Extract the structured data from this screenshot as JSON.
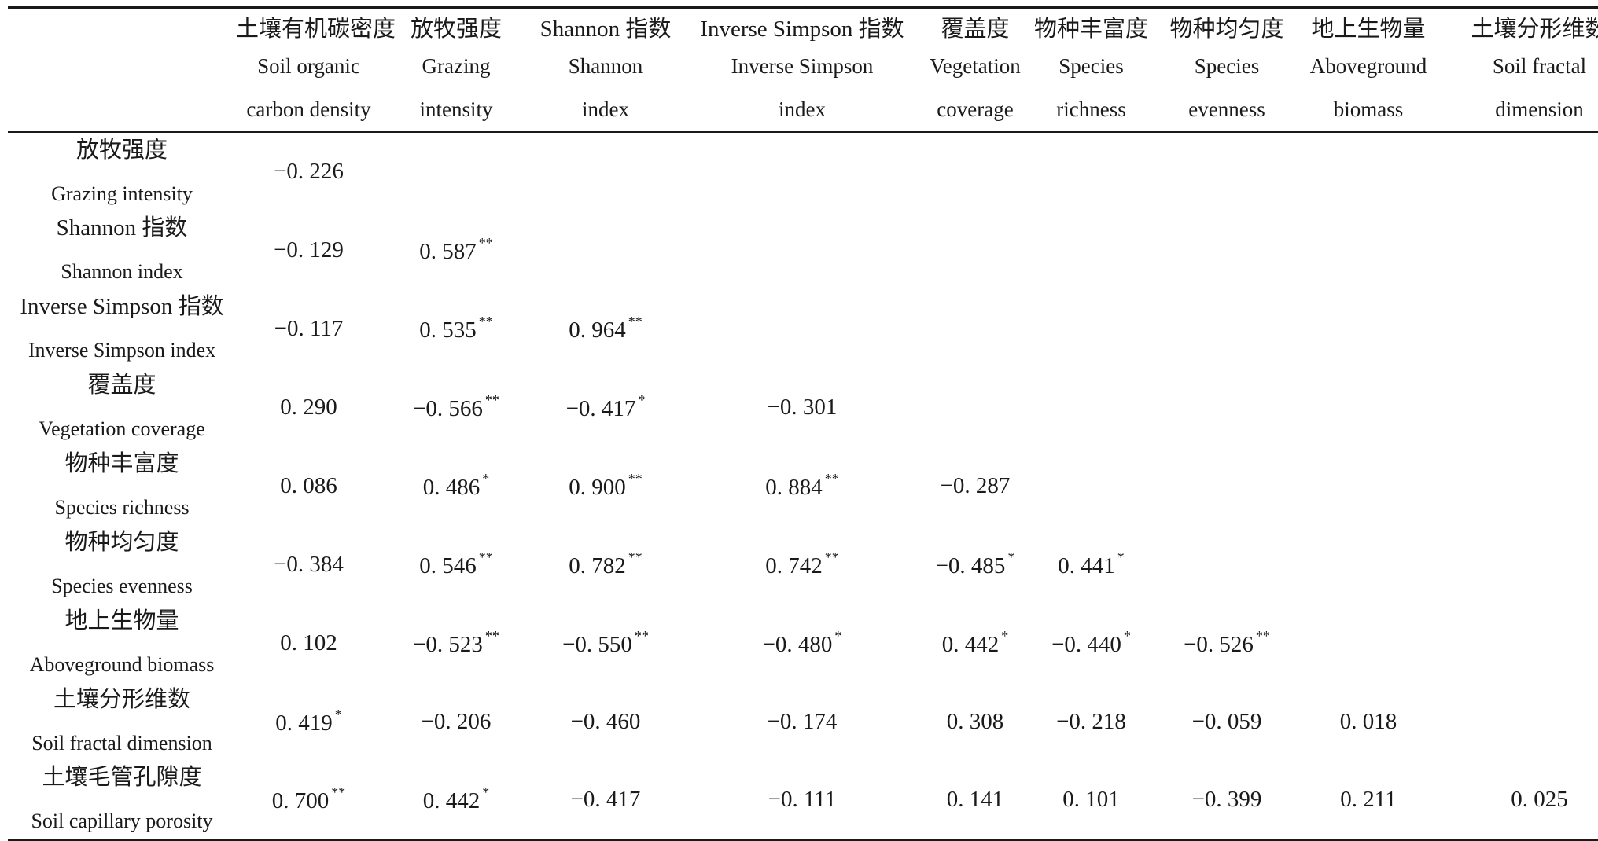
{
  "columns": [
    {
      "cn": "土壤有机碳密度",
      "en1": "Soil organic",
      "en2": "carbon density"
    },
    {
      "cn": "放牧强度",
      "en1": "Grazing",
      "en2": "intensity"
    },
    {
      "cn": "Shannon 指数",
      "en1": "Shannon",
      "en2": "index"
    },
    {
      "cn": "Inverse Simpson 指数",
      "en1": "Inverse Simpson",
      "en2": "index"
    },
    {
      "cn": "覆盖度",
      "en1": "Vegetation",
      "en2": "coverage"
    },
    {
      "cn": "物种丰富度",
      "en1": "Species",
      "en2": "richness"
    },
    {
      "cn": "物种均匀度",
      "en1": "Species",
      "en2": "evenness"
    },
    {
      "cn": "地上生物量",
      "en1": "Aboveground",
      "en2": "biomass"
    },
    {
      "cn": "土壤分形维数",
      "en1": "Soil fractal",
      "en2": "dimension"
    }
  ],
  "rows": [
    {
      "cn": "放牧强度",
      "en": "Grazing intensity",
      "cells": [
        {
          "v": "−0. 226",
          "s": ""
        }
      ]
    },
    {
      "cn": "Shannon 指数",
      "en": "Shannon index",
      "cells": [
        {
          "v": "−0. 129",
          "s": ""
        },
        {
          "v": "0. 587",
          "s": "**"
        }
      ]
    },
    {
      "cn": "Inverse Simpson 指数",
      "en": "Inverse Simpson index",
      "cells": [
        {
          "v": "−0. 117",
          "s": ""
        },
        {
          "v": "0. 535",
          "s": "**"
        },
        {
          "v": "0. 964",
          "s": "**"
        }
      ]
    },
    {
      "cn": "覆盖度",
      "en": "Vegetation coverage",
      "cells": [
        {
          "v": "0. 290",
          "s": ""
        },
        {
          "v": "−0. 566",
          "s": "**"
        },
        {
          "v": "−0. 417",
          "s": "*"
        },
        {
          "v": "−0. 301",
          "s": ""
        }
      ]
    },
    {
      "cn": "物种丰富度",
      "en": "Species richness",
      "cells": [
        {
          "v": "0. 086",
          "s": ""
        },
        {
          "v": "0. 486",
          "s": "*"
        },
        {
          "v": "0. 900",
          "s": "**"
        },
        {
          "v": "0. 884",
          "s": "**"
        },
        {
          "v": "−0. 287",
          "s": ""
        }
      ]
    },
    {
      "cn": "物种均匀度",
      "en": "Species evenness",
      "cells": [
        {
          "v": "−0. 384",
          "s": ""
        },
        {
          "v": "0. 546",
          "s": "**"
        },
        {
          "v": "0. 782",
          "s": "**"
        },
        {
          "v": "0. 742",
          "s": "**"
        },
        {
          "v": "−0. 485",
          "s": "*"
        },
        {
          "v": "0. 441",
          "s": "*"
        }
      ]
    },
    {
      "cn": "地上生物量",
      "en": "Aboveground biomass",
      "cells": [
        {
          "v": "0. 102",
          "s": ""
        },
        {
          "v": "−0. 523",
          "s": "**"
        },
        {
          "v": "−0. 550",
          "s": "**"
        },
        {
          "v": "−0. 480",
          "s": "*"
        },
        {
          "v": "0. 442",
          "s": "*"
        },
        {
          "v": "−0. 440",
          "s": "*"
        },
        {
          "v": "−0. 526",
          "s": "**"
        }
      ]
    },
    {
      "cn": "土壤分形维数",
      "en": "Soil fractal dimension",
      "cells": [
        {
          "v": "0. 419",
          "s": "*"
        },
        {
          "v": "−0. 206",
          "s": ""
        },
        {
          "v": "−0. 460",
          "s": ""
        },
        {
          "v": "−0. 174",
          "s": ""
        },
        {
          "v": "0. 308",
          "s": ""
        },
        {
          "v": "−0. 218",
          "s": ""
        },
        {
          "v": "−0. 059",
          "s": ""
        },
        {
          "v": "0. 018",
          "s": ""
        }
      ]
    },
    {
      "cn": "土壤毛管孔隙度",
      "en": "Soil capillary porosity",
      "cells": [
        {
          "v": "0. 700",
          "s": "**"
        },
        {
          "v": "0. 442",
          "s": "*"
        },
        {
          "v": "−0. 417",
          "s": ""
        },
        {
          "v": "−0. 111",
          "s": ""
        },
        {
          "v": "0. 141",
          "s": ""
        },
        {
          "v": "0. 101",
          "s": ""
        },
        {
          "v": "−0. 399",
          "s": ""
        },
        {
          "v": "0. 211",
          "s": ""
        },
        {
          "v": "0. 025",
          "s": ""
        }
      ]
    }
  ]
}
